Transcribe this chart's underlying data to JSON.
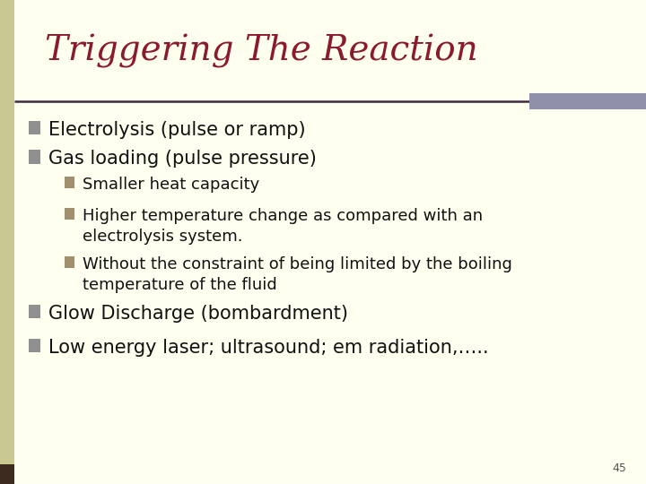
{
  "title": "Triggering The Reaction",
  "title_color": "#8B1A2D",
  "background_color": "#FFFFF0",
  "slide_number": "45",
  "title_font_size": 28,
  "left_bar_color": "#3D2B1F",
  "top_line_color": "#3D2B3D",
  "top_right_rect_color": "#9090A8",
  "bullet_square_color_l1": "#909090",
  "bullet_square_color_l2": "#A09070",
  "bullet_font_size_l1": 15,
  "bullet_font_size_l2": 13,
  "slide_num_font_size": 9,
  "slide_num_color": "#555555",
  "items": [
    {
      "level": 1,
      "text": "Electrolysis (pulse or ramp)"
    },
    {
      "level": 1,
      "text": "Gas loading (pulse pressure)"
    },
    {
      "level": 2,
      "text": "Smaller heat capacity"
    },
    {
      "level": 2,
      "text": "Higher temperature change as compared with an\nelectrolysis system."
    },
    {
      "level": 2,
      "text": "Without the constraint of being limited by the boiling\ntemperature of the fluid"
    },
    {
      "level": 1,
      "text": "Glow Discharge (bombardment)"
    },
    {
      "level": 1,
      "text": "Low energy laser; ultrasound; em radiation,….."
    }
  ]
}
